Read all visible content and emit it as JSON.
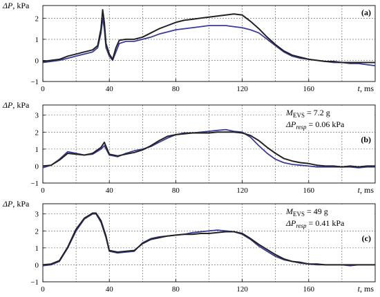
{
  "colors": {
    "black_series": "#222222",
    "blue_series": "#3a3a9a",
    "grid": "#555555"
  },
  "chart_data": [
    {
      "type": "line",
      "panel_label": "(a)",
      "ylabel": "ΔP, kPa",
      "xlabel": "t, ms",
      "xlim": [
        0,
        200
      ],
      "ylim": [
        -1,
        2.6
      ],
      "x_ticks": [
        0,
        40,
        80,
        120,
        160
      ],
      "y_ticks": [
        -1,
        0,
        1,
        2
      ],
      "grid_x": [
        20,
        40,
        60,
        80,
        100,
        120,
        140,
        160,
        180
      ],
      "grid_y": [
        0,
        1,
        2
      ],
      "annotation": [],
      "series": [
        {
          "color": "blue",
          "x": [
            0,
            5,
            10,
            15,
            20,
            25,
            30,
            33,
            35,
            36,
            37,
            38,
            40,
            42,
            44,
            46,
            50,
            55,
            60,
            65,
            70,
            75,
            80,
            85,
            90,
            95,
            100,
            105,
            110,
            115,
            120,
            125,
            130,
            135,
            140,
            145,
            150,
            155,
            160,
            165,
            170,
            175,
            180,
            185,
            190,
            195,
            200
          ],
          "y": [
            -0.1,
            -0.05,
            0.0,
            0.1,
            0.2,
            0.3,
            0.4,
            0.6,
            1.3,
            2.0,
            1.5,
            0.6,
            0.2,
            0.0,
            0.4,
            0.8,
            0.9,
            0.9,
            1.0,
            1.1,
            1.25,
            1.35,
            1.45,
            1.5,
            1.55,
            1.6,
            1.65,
            1.65,
            1.65,
            1.6,
            1.55,
            1.45,
            1.3,
            1.0,
            0.7,
            0.4,
            0.2,
            0.1,
            0.05,
            0.0,
            -0.05,
            -0.1,
            -0.1,
            -0.15,
            -0.15,
            -0.2,
            -0.25
          ]
        },
        {
          "color": "black",
          "x": [
            0,
            5,
            10,
            15,
            20,
            25,
            30,
            33,
            35,
            36,
            37,
            38,
            40,
            42,
            44,
            46,
            50,
            55,
            60,
            65,
            70,
            75,
            80,
            85,
            90,
            95,
            100,
            105,
            110,
            115,
            120,
            125,
            130,
            135,
            140,
            145,
            150,
            155,
            160,
            165,
            170,
            175,
            180,
            185,
            190,
            195,
            200
          ],
          "y": [
            -0.05,
            0.0,
            0.05,
            0.2,
            0.3,
            0.4,
            0.5,
            0.7,
            1.5,
            2.4,
            1.8,
            0.8,
            0.3,
            0.05,
            0.6,
            0.95,
            1.0,
            1.0,
            1.1,
            1.3,
            1.5,
            1.65,
            1.8,
            1.9,
            1.95,
            2.0,
            2.05,
            2.1,
            2.15,
            2.2,
            2.15,
            1.85,
            1.5,
            1.1,
            0.75,
            0.45,
            0.25,
            0.15,
            0.05,
            0.0,
            -0.05,
            -0.05,
            -0.1,
            -0.1,
            -0.1,
            -0.1,
            -0.1
          ]
        }
      ]
    },
    {
      "type": "line",
      "panel_label": "(b)",
      "ylabel": "ΔP, kPa",
      "xlabel": "t, ms",
      "xlim": [
        0,
        200
      ],
      "ylim": [
        -1,
        3.6
      ],
      "x_ticks": [
        0,
        40,
        80,
        120,
        160
      ],
      "y_ticks": [
        -1,
        0,
        1,
        2,
        3
      ],
      "grid_x": [
        20,
        40,
        60,
        80,
        100,
        120,
        140,
        160,
        180
      ],
      "grid_y": [
        0,
        1,
        2,
        3
      ],
      "annotation": [
        {
          "base": "M",
          "sub": "EVS",
          "rest": " = 7.2 g"
        },
        {
          "base": "ΔP",
          "sub": "resp",
          "rest": " = 0.06 kPa"
        }
      ],
      "series": [
        {
          "color": "blue",
          "x": [
            0,
            5,
            10,
            15,
            20,
            25,
            30,
            35,
            37,
            40,
            45,
            50,
            55,
            60,
            65,
            70,
            75,
            80,
            85,
            90,
            95,
            100,
            105,
            110,
            115,
            120,
            125,
            130,
            135,
            140,
            145,
            150,
            155,
            160,
            165,
            170,
            175,
            180,
            185,
            190,
            195,
            200
          ],
          "y": [
            -0.1,
            0.05,
            0.4,
            0.85,
            0.75,
            0.65,
            0.7,
            1.0,
            1.2,
            0.65,
            0.55,
            0.75,
            0.9,
            1.0,
            1.15,
            1.4,
            1.65,
            1.85,
            1.95,
            1.95,
            2.0,
            2.05,
            2.1,
            2.15,
            2.05,
            2.0,
            1.7,
            1.2,
            0.75,
            0.4,
            0.2,
            0.1,
            0.05,
            0.0,
            -0.05,
            -0.05,
            -0.05,
            -0.05,
            -0.05,
            -0.1,
            -0.05,
            -0.05
          ]
        },
        {
          "color": "black",
          "x": [
            0,
            5,
            10,
            15,
            20,
            25,
            30,
            35,
            37,
            40,
            45,
            50,
            55,
            60,
            65,
            70,
            75,
            80,
            85,
            90,
            95,
            100,
            105,
            110,
            115,
            120,
            125,
            130,
            135,
            140,
            145,
            150,
            155,
            160,
            165,
            170,
            175,
            180,
            185,
            190,
            195,
            200
          ],
          "y": [
            0.0,
            0.05,
            0.35,
            0.75,
            0.7,
            0.65,
            0.75,
            1.1,
            1.4,
            0.7,
            0.6,
            0.7,
            0.8,
            0.95,
            1.2,
            1.5,
            1.75,
            1.85,
            1.9,
            1.95,
            1.95,
            1.95,
            2.0,
            2.0,
            2.0,
            1.95,
            1.8,
            1.5,
            1.1,
            0.75,
            0.45,
            0.3,
            0.2,
            0.15,
            0.05,
            0.0,
            0.0,
            -0.05,
            0.0,
            -0.05,
            0.0,
            0.0
          ]
        }
      ]
    },
    {
      "type": "line",
      "panel_label": "(c)",
      "ylabel": "ΔP, kPa",
      "xlabel": "t, ms",
      "xlim": [
        0,
        200
      ],
      "ylim": [
        -1,
        3.6
      ],
      "x_ticks": [
        0,
        40,
        80,
        120,
        160
      ],
      "y_ticks": [
        -1,
        0,
        1,
        2,
        3
      ],
      "grid_x": [
        20,
        40,
        60,
        80,
        100,
        120,
        140,
        160,
        180
      ],
      "grid_y": [
        0,
        1,
        2,
        3
      ],
      "annotation": [
        {
          "base": "M",
          "sub": "EVS",
          "rest": " = 49 g"
        },
        {
          "base": "ΔP",
          "sub": "resp",
          "rest": " = 0.41 kPa"
        }
      ],
      "series": [
        {
          "color": "blue",
          "x": [
            0,
            5,
            10,
            15,
            20,
            25,
            30,
            32,
            35,
            38,
            40,
            45,
            50,
            55,
            60,
            65,
            70,
            75,
            80,
            85,
            90,
            95,
            100,
            105,
            110,
            115,
            120,
            125,
            130,
            135,
            140,
            145,
            150,
            155,
            160,
            165,
            170,
            175,
            180,
            185,
            190,
            195,
            200
          ],
          "y": [
            -0.05,
            0.0,
            0.2,
            1.0,
            2.0,
            2.7,
            3.0,
            3.0,
            2.5,
            1.6,
            0.8,
            0.7,
            0.75,
            0.8,
            1.3,
            1.55,
            1.65,
            1.7,
            1.75,
            1.8,
            1.9,
            1.95,
            2.0,
            2.05,
            2.0,
            1.95,
            1.8,
            1.5,
            1.1,
            0.8,
            0.5,
            0.3,
            0.2,
            0.1,
            0.05,
            0.0,
            0.0,
            0.0,
            0.0,
            -0.05,
            0.0,
            0.0,
            0.0
          ]
        },
        {
          "color": "black",
          "x": [
            0,
            5,
            10,
            15,
            20,
            25,
            30,
            32,
            35,
            38,
            40,
            45,
            50,
            55,
            60,
            65,
            70,
            75,
            80,
            85,
            90,
            95,
            100,
            105,
            110,
            115,
            120,
            125,
            130,
            135,
            140,
            145,
            150,
            155,
            160,
            165,
            170,
            175,
            180,
            185,
            190,
            195,
            200
          ],
          "y": [
            0.0,
            0.05,
            0.25,
            1.05,
            2.1,
            2.75,
            3.05,
            3.05,
            2.6,
            1.7,
            0.85,
            0.75,
            0.8,
            0.85,
            1.25,
            1.5,
            1.6,
            1.7,
            1.75,
            1.8,
            1.8,
            1.85,
            1.85,
            1.9,
            1.95,
            1.95,
            1.85,
            1.55,
            1.2,
            0.9,
            0.6,
            0.35,
            0.2,
            0.15,
            0.05,
            0.05,
            0.0,
            0.0,
            0.0,
            0.0,
            0.0,
            0.0,
            0.0
          ]
        }
      ]
    }
  ]
}
